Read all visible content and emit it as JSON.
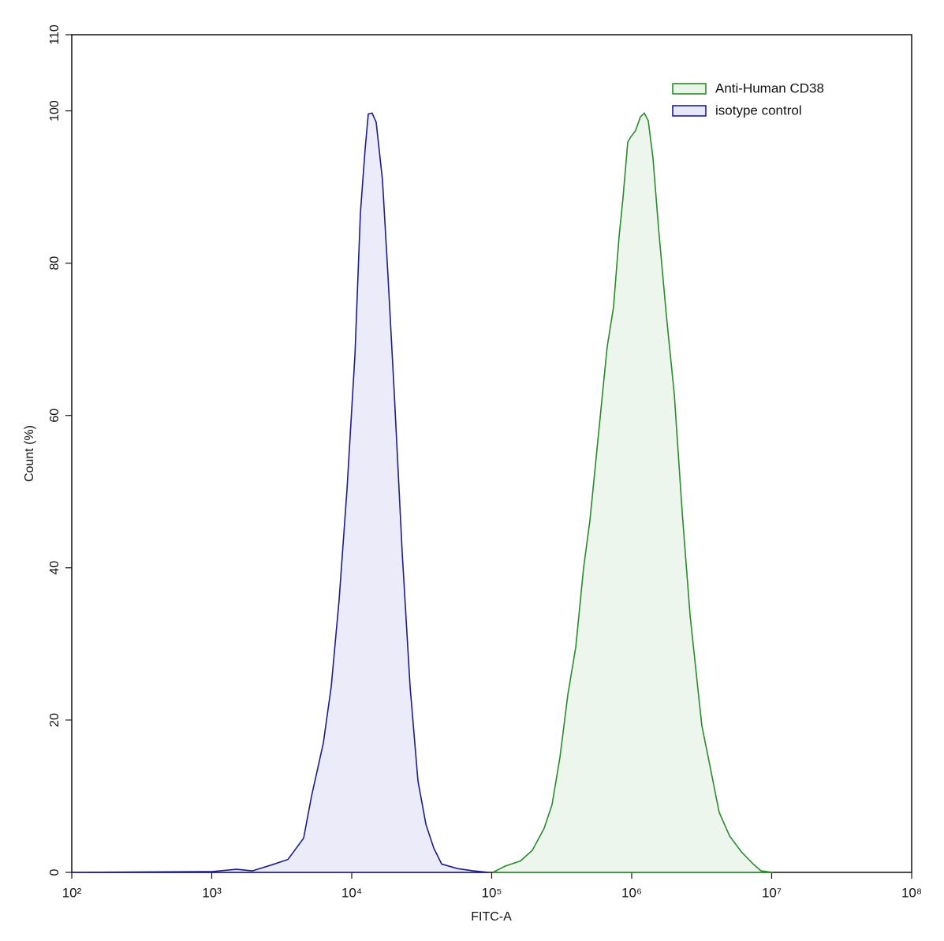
{
  "chart_data": {
    "type": "histogram-overlay",
    "xlabel": "FITC-A",
    "ylabel": "Count (%)",
    "xscale": "log",
    "xlim": [
      100,
      100000000
    ],
    "xticks": [
      {
        "value": 100,
        "label": "10²"
      },
      {
        "value": 1000,
        "label": "10³"
      },
      {
        "value": 10000,
        "label": "10⁴"
      },
      {
        "value": 100000,
        "label": "10⁵"
      },
      {
        "value": 1000000,
        "label": "10⁶"
      },
      {
        "value": 10000000,
        "label": "10⁷"
      },
      {
        "value": 100000000,
        "label": "10⁸"
      }
    ],
    "ylim": [
      0,
      110
    ],
    "yticks": [
      0,
      20,
      40,
      60,
      80,
      100,
      110
    ],
    "legend": "upper right",
    "series": [
      {
        "name": "Anti-Human CD38",
        "color": "#2b8a2b",
        "fill": "#e9f5e9",
        "x": [
          101800,
          123800,
          160600,
          195100,
          237000,
          269900,
          307100,
          349900,
          398400,
          453300,
          502700,
          587100,
          668400,
          741300,
          812800,
          867000,
          937600,
          986300,
          1066000,
          1153000,
          1230000,
          1313000,
          1419000,
          1556000,
          1770000,
          2015000,
          2296000,
          2612000,
          3170000,
          3614000,
          4217000,
          4999000,
          6067000,
          7379000,
          8395000,
          10190000
        ],
        "values": [
          0,
          0.8,
          1.5,
          2.9,
          5.8,
          8.9,
          15.1,
          23.4,
          29.6,
          40,
          46.2,
          58.6,
          69,
          74.2,
          83.5,
          88.6,
          95.9,
          96.6,
          97.4,
          99.2,
          99.7,
          98.7,
          93.8,
          84.5,
          73.1,
          62.8,
          47.2,
          33.8,
          19.3,
          14.1,
          7.9,
          4.8,
          2.7,
          1.1,
          0.2,
          0
        ]
      },
      {
        "name": "isotype control",
        "color": "#1c1c8f",
        "fill": "#e7e7f9",
        "x": [
          100,
          1000,
          1503,
          1950,
          2700,
          3500,
          4530,
          5160,
          6270,
          7140,
          8130,
          9250,
          10540,
          11540,
          12470,
          13130,
          14000,
          14950,
          16590,
          18170,
          20150,
          22950,
          26130,
          29720,
          33880,
          38550,
          43890,
          56850,
          73780,
          95500
        ],
        "values": [
          0,
          0.1,
          0.4,
          0.2,
          1.0,
          1.7,
          4.5,
          10,
          17,
          24.4,
          35.8,
          50.3,
          68,
          86.6,
          95,
          99.6,
          99.7,
          98.5,
          90.9,
          78.3,
          62.8,
          42,
          24.4,
          12,
          6.3,
          3.2,
          1.1,
          0.5,
          0.2,
          0
        ]
      }
    ]
  }
}
